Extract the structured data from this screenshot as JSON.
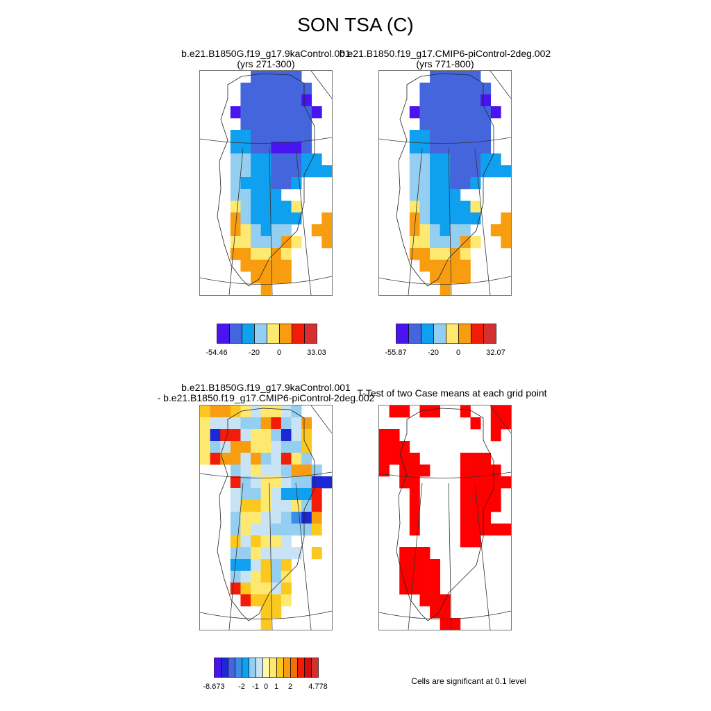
{
  "title": "SON TSA (C)",
  "panels": {
    "case1": {
      "title_line1": "b.e21.B1850G.f19_g17.9kaControl.001",
      "title_line2": "(yrs 271-300)"
    },
    "case2": {
      "title_line1": "b.e21.B1850.f19_g17.CMIP6-piControl-2deg.002",
      "title_line2": "(yrs 771-800)"
    },
    "diff": {
      "title_line1": "b.e21.B1850G.f19_g17.9kaControl.001",
      "title_line2": "- b.e21.B1850.f19_g17.CMIP6-piControl-2deg.002"
    },
    "ttest": {
      "title_line1": "T-Test of two Case means at each grid point"
    }
  },
  "significance_note": "Cells are significant at 0.1 level",
  "colors": {
    "tsa_scale": [
      "#4a14f0",
      "#4565dc",
      "#10a0f0",
      "#94cef0",
      "#fde870",
      "#f89c10",
      "#f21c08",
      "#d43030"
    ],
    "diff_scale": [
      "#4a14f0",
      "#1c28d6",
      "#4565dc",
      "#3c8ce8",
      "#10a0f0",
      "#94cef0",
      "#c8e4f4",
      "#fff6a8",
      "#fde870",
      "#fbc820",
      "#f89c10",
      "#f27208",
      "#f21c08",
      "#d40e0e",
      "#d43030"
    ],
    "significant": "#ff0000"
  },
  "colorbars": {
    "case1": {
      "labels": [
        "-54.46",
        "-20",
        "0",
        "33.03"
      ]
    },
    "case2": {
      "labels": [
        "-55.87",
        "-20",
        "0",
        "32.07"
      ]
    },
    "diff": {
      "labels": [
        "-8.673",
        "-2",
        "-1",
        "0",
        "1",
        "2",
        "4.778"
      ]
    }
  },
  "chart_data": [
    {
      "type": "heatmap",
      "panel": "case1",
      "title": "b.e21.B1850G.f19_g17.9kaControl.001 (yrs 271-300)",
      "variable": "SON TSA (C)",
      "colorbar_min": -54.46,
      "colorbar_max": 33.03,
      "colorbar_ticks": [
        -20,
        0
      ],
      "grid_cell_bins": [
        "0000022222000",
        "0000222222200",
        "0000222222100",
        "0001222222210",
        "0000222222200",
        "0003322222200",
        "0003322111200",
        "0004433222330",
        "0004433222333",
        "0004333223000",
        "0004433300000",
        "0005433335000",
        "0006433333006",
        "0006543440066",
        "0005544465006",
        "0006655650000",
        "0000666660000",
        "0000066660000",
        "0000006000000"
      ]
    },
    {
      "type": "heatmap",
      "panel": "case2",
      "title": "b.e21.B1850.f19_g17.CMIP6-piControl-2deg.002 (yrs 771-800)",
      "variable": "SON TSA (C)",
      "colorbar_min": -55.87,
      "colorbar_max": 32.07,
      "colorbar_ticks": [
        -20,
        0
      ],
      "grid_cell_bins": [
        "0000022222000",
        "0000222222200",
        "0000222222100",
        "0001222222210",
        "0000222222200",
        "0003322222200",
        "0003322222200",
        "0004433222330",
        "0004433222333",
        "0004433223000",
        "0004433300000",
        "0005433335000",
        "0006433333006",
        "0006543440066",
        "0005544465006",
        "0006655650000",
        "0000666660000",
        "0000066660000",
        "0000006000000"
      ]
    },
    {
      "type": "heatmap",
      "panel": "diff",
      "title": "b.e21.B1850G.f19_g17.9kaControl.001 - b.e21.B1850.f19_g17.CMIP6-piControl-2deg.002",
      "variable": "SON TSA (C)",
      "colorbar_min": -8.673,
      "colorbar_max": 4.778,
      "colorbar_ticks": [
        -2,
        -1,
        0,
        1,
        2
      ],
      "grid_cell_bins": [
        "7887656654000",
        "6555448945800",
        "6199566415700",
        "6458866544700",
        "6988584596400",
        "0004565548840",
        "0009456654411",
        "0005446533390",
        "0005776556490",
        "0004665542180",
        "0004655444470",
        "0007576650000",
        "0004465555070",
        "0003357470000",
        "0004567460000",
        "0009766570000",
        "0000977760000",
        "0000007700000",
        "0000007000000"
      ]
    },
    {
      "type": "heatmap",
      "panel": "ttest",
      "title": "T-Test of two Case means at each grid point",
      "note": "Cells are significant at 0.1 level",
      "grid_significant": [
        "0110110010011",
        "0000000001011",
        "1100000000010",
        "1110000000000",
        "1111000011100",
        "1011100011110",
        "0011000011111",
        "0001000011110",
        "0001000011110",
        "0001000011100",
        "0001000011111",
        "0000000011000",
        "0011100000000",
        "0011110000000",
        "0011110000000",
        "0011110000000",
        "0000111000000",
        "0000011000000",
        "0000001100000"
      ]
    }
  ]
}
